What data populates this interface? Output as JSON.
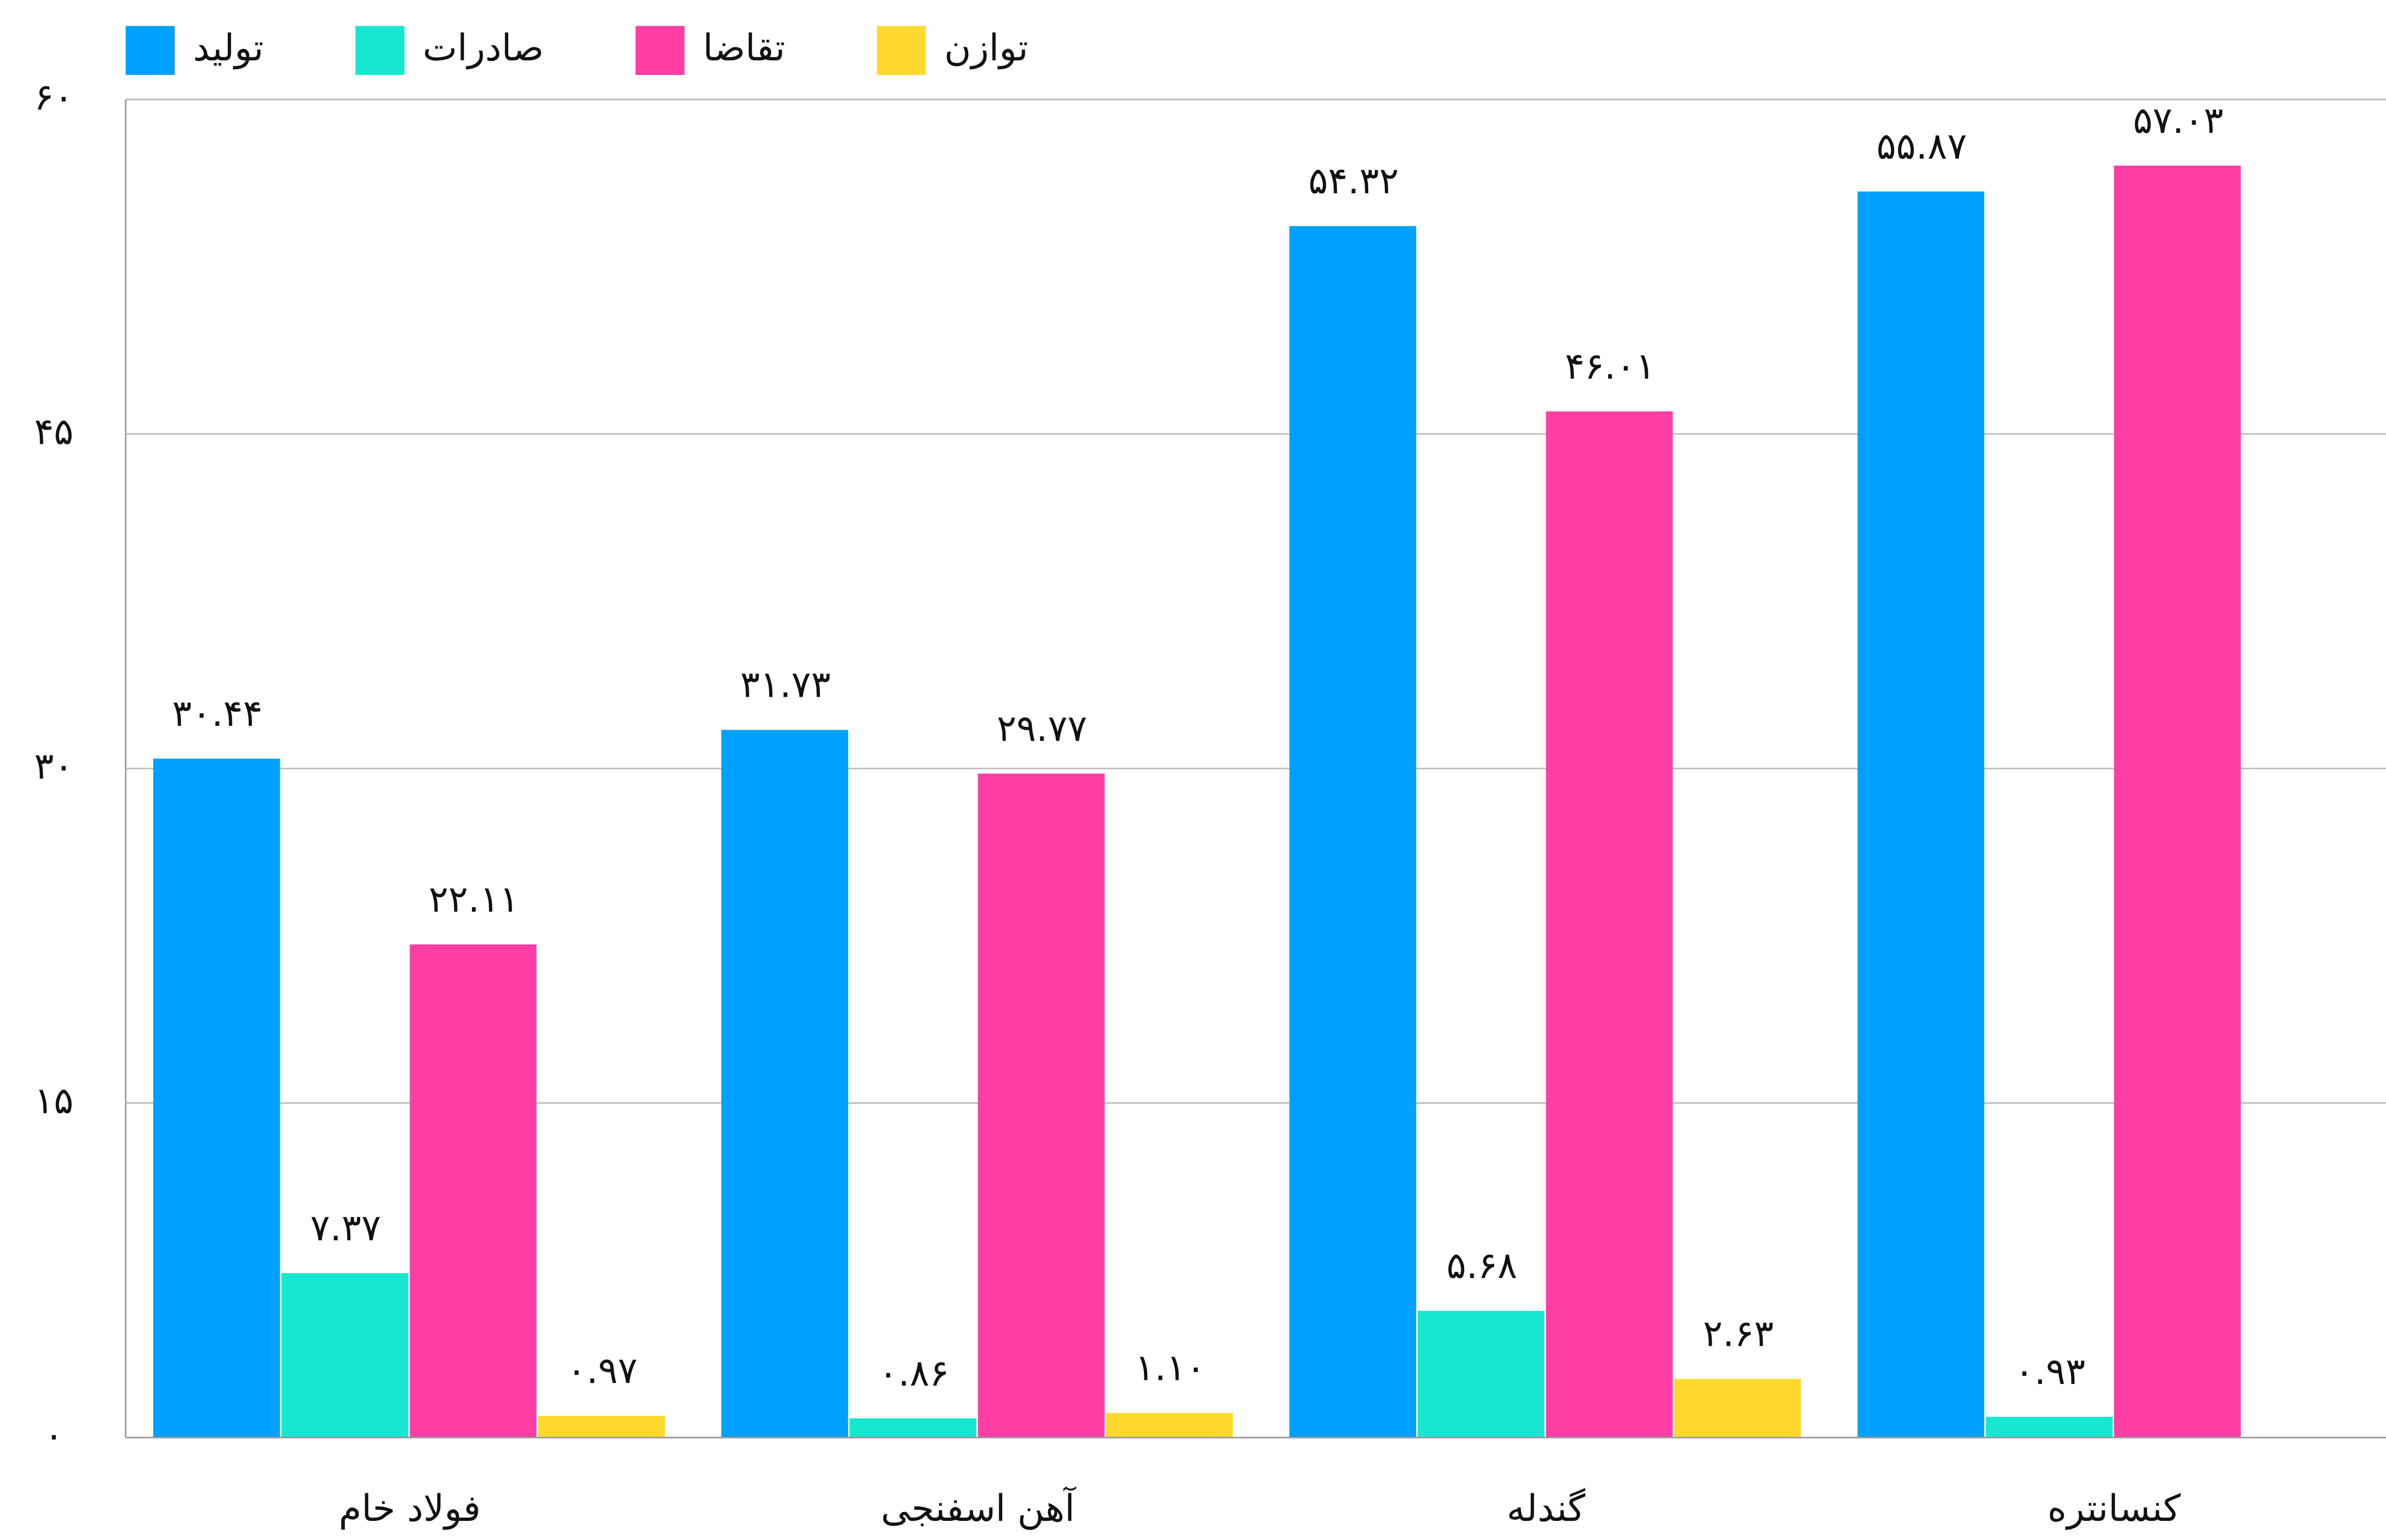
{
  "chart_data": {
    "type": "bar",
    "categories": [
      "فولاد خام",
      "آهن اسفنجی",
      "گندله",
      "کنسانتره"
    ],
    "series": [
      {
        "name": "تولید",
        "color": "#00a0ff",
        "values": [
          30.44,
          31.73,
          54.32,
          55.87
        ],
        "value_labels": [
          "۳۰.۴۴",
          "۳۱.۷۳",
          "۵۴.۳۲",
          "۵۵.۸۷"
        ]
      },
      {
        "name": "صادرات",
        "color": "#17e6d0",
        "values": [
          7.37,
          0.86,
          5.68,
          0.93
        ],
        "value_labels": [
          "۷.۳۷",
          "۰.۸۶",
          "۵.۶۸",
          "۰.۹۳"
        ]
      },
      {
        "name": "تقاضا",
        "color": "#ff3ea5",
        "values": [
          22.11,
          29.77,
          46.01,
          57.03
        ],
        "value_labels": [
          "۲۲.۱۱",
          "۲۹.۷۷",
          "۴۶.۰۱",
          "۵۷.۰۳"
        ]
      },
      {
        "name": "توازن",
        "color": "#ffd92e",
        "values": [
          0.97,
          1.1,
          2.63,
          null
        ],
        "value_labels": [
          "۰.۹۷",
          "۱.۱۰",
          "۲.۶۳",
          null
        ]
      }
    ],
    "ylim": [
      0,
      60
    ],
    "yticks": [
      {
        "value": 0,
        "label": "۰"
      },
      {
        "value": 15,
        "label": "۱۵"
      },
      {
        "value": 30,
        "label": "۳۰"
      },
      {
        "value": 45,
        "label": "۴۵"
      },
      {
        "value": 60,
        "label": "۶۰"
      }
    ],
    "grid": true,
    "legend": "top"
  }
}
